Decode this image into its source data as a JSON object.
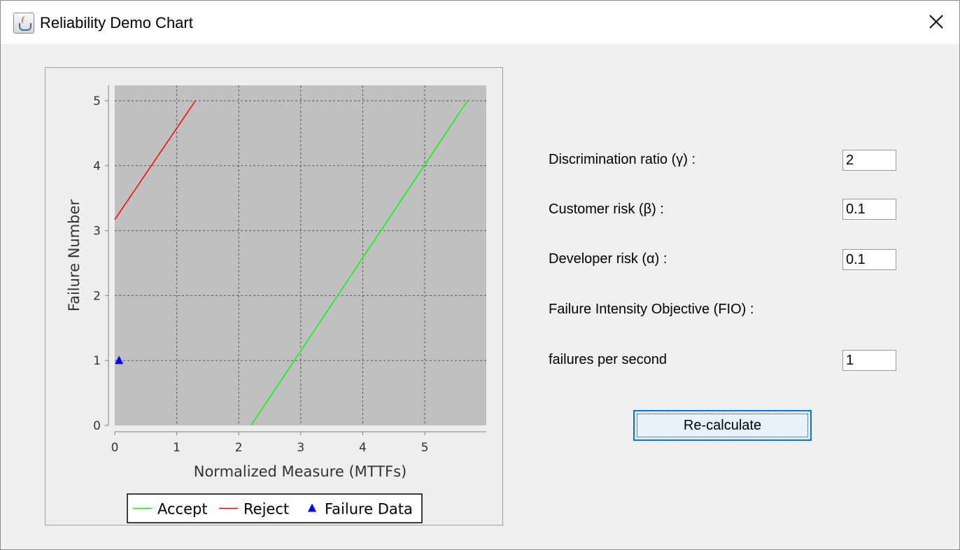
{
  "window": {
    "title": "Reliability Demo Chart",
    "icon": "java-app-icon",
    "close_icon": "close-icon"
  },
  "chart_data": {
    "type": "line",
    "title": "",
    "xlabel": "Normalized Measure (MTTFs)",
    "ylabel": "Failure Number",
    "xlim": [
      0,
      6
    ],
    "ylim": [
      0,
      5.25
    ],
    "x_ticks": [
      "0",
      "1",
      "2",
      "3",
      "4",
      "5"
    ],
    "y_ticks": [
      "0",
      "1",
      "2",
      "3",
      "4",
      "5"
    ],
    "grid": true,
    "legend_placement": "bottom",
    "series": [
      {
        "name": "Accept",
        "kind": "line",
        "color": "#00ff00",
        "x": [
          2.2,
          5.69
        ],
        "y": [
          0,
          5
        ]
      },
      {
        "name": "Reject",
        "kind": "line",
        "color": "#ff0000",
        "x": [
          0,
          1.3
        ],
        "y": [
          3.17,
          5
        ]
      },
      {
        "name": "Failure Data",
        "kind": "marker",
        "marker": "triangle",
        "color": "#0000ff",
        "x": [
          0.07
        ],
        "y": [
          1
        ]
      }
    ],
    "plot_background": "#c0c0c0",
    "grid_color": "#555555"
  },
  "form": {
    "discrimination_label": "Discrimination ratio (γ) :",
    "discrimination_value": "2",
    "customer_risk_label": "Customer risk (β) :",
    "customer_risk_value": "0.1",
    "developer_risk_label": "Developer risk (α) :",
    "developer_risk_value": "0.1",
    "fio_label": "Failure Intensity Objective (FIO) :",
    "fps_label": "failures per second",
    "fps_value": "1",
    "recalculate_label": "Re-calculate"
  },
  "colors": {
    "accent": "#0078d7",
    "button_bg": "#e5f1fb"
  }
}
